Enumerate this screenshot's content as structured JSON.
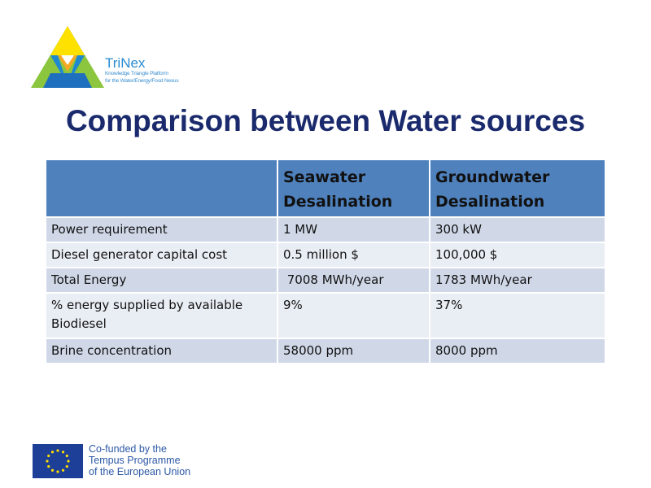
{
  "logo": {
    "name": "TriNex",
    "tagline_1": "Knowledge Triangle Platform",
    "tagline_2": "for the Water/Energy/Food Nexus"
  },
  "title": "Comparison between Water sources",
  "table": {
    "headers": [
      "",
      "Seawater Desalination",
      "Groundwater Desalination"
    ],
    "rows": [
      [
        "Power requirement",
        "1 MW",
        "300 kW"
      ],
      [
        "Diesel generator capital cost",
        "0.5 million $",
        "100,000 $"
      ],
      [
        "Total Energy",
        " 7008 MWh/year",
        "1783 MWh/year"
      ],
      [
        "% energy supplied by  available Biodiesel",
        "9%",
        "37%"
      ],
      [
        "Brine concentration",
        "58000 ppm",
        "8000 ppm"
      ]
    ]
  },
  "footer": {
    "line_1": "Co-funded by the",
    "line_2": "Tempus Programme",
    "line_3": "of the European Union"
  },
  "colors": {
    "title": "#1a2a6c",
    "header": "#4f81bd",
    "row_odd": "#d0d8e8",
    "row_even": "#e9edf4"
  }
}
